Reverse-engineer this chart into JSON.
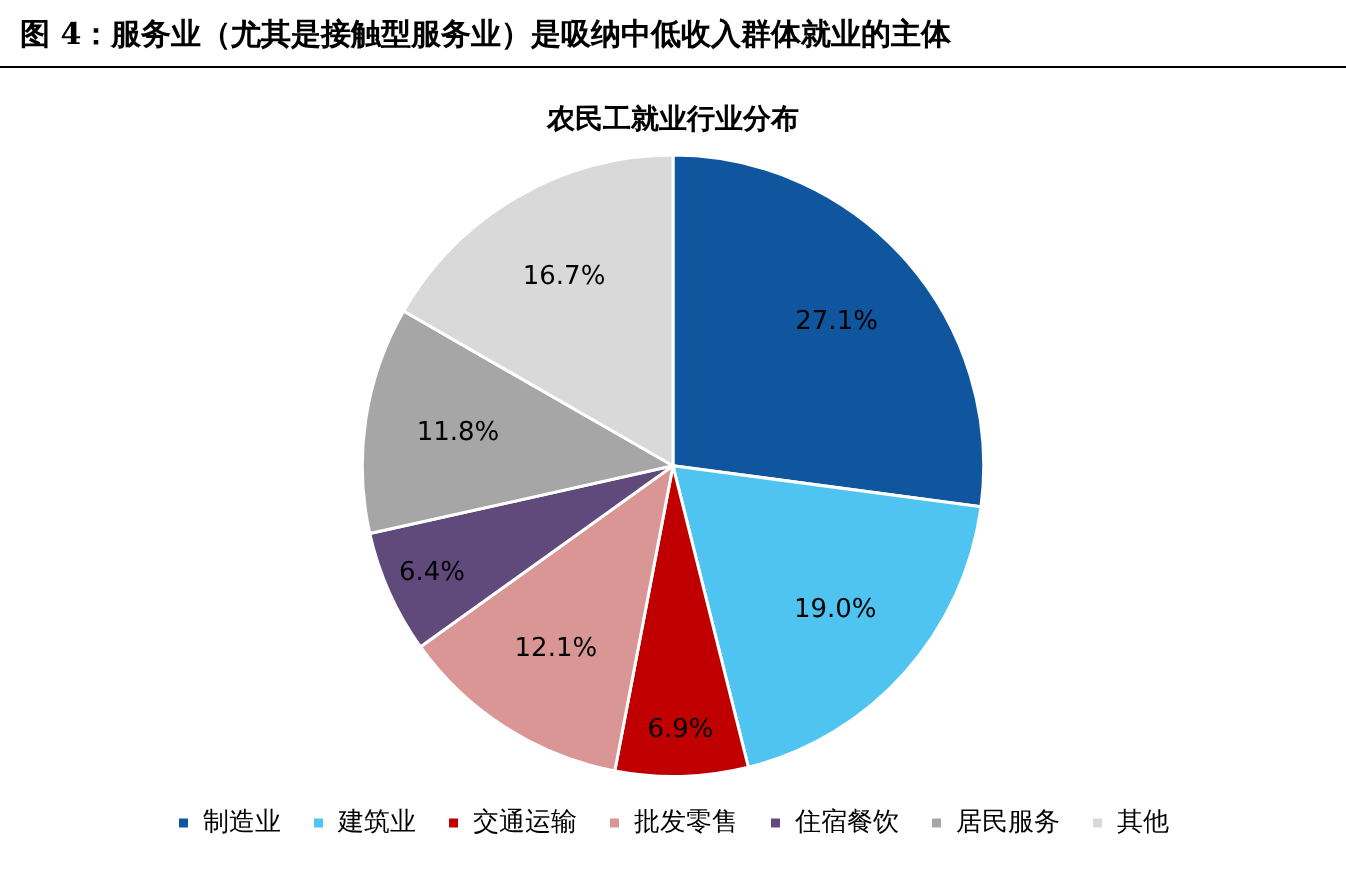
{
  "chart_data": {
    "type": "pie",
    "title": "图 4：服务业（尤其是接触型服务业）是吸纳中低收入群体就业的主体",
    "subtitle": "农民工就业行业分布",
    "categories": [
      "制造业",
      "建筑业",
      "交通运输",
      "批发零售",
      "住宿餐饮",
      "居民服务",
      "其他"
    ],
    "values": [
      27.1,
      19.0,
      6.9,
      12.1,
      6.4,
      11.8,
      16.7
    ],
    "value_labels": [
      "27.1%",
      "19.0%",
      "6.9%",
      "12.1%",
      "6.4%",
      "11.8%",
      "16.7%"
    ],
    "colors": [
      "#0f569f",
      "#4fc4f0",
      "#c00000",
      "#d99694",
      "#604a7b",
      "#a6a6a6",
      "#d9d9d9"
    ],
    "legend": "bottom"
  }
}
